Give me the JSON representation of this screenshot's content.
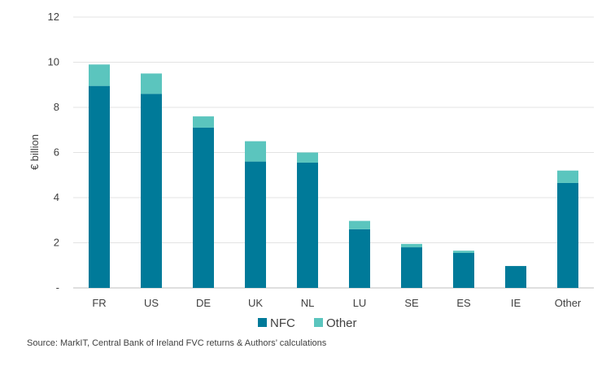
{
  "chart_data": {
    "type": "bar",
    "stacked": true,
    "categories": [
      "FR",
      "US",
      "DE",
      "UK",
      "NL",
      "LU",
      "SE",
      "ES",
      "IE",
      "Other"
    ],
    "series": [
      {
        "name": "NFC",
        "color": "#007A99",
        "values": [
          8.95,
          8.6,
          7.1,
          5.6,
          5.55,
          2.6,
          1.8,
          1.55,
          0.97,
          4.65
        ]
      },
      {
        "name": "Other",
        "color": "#5BC5BE",
        "values": [
          0.95,
          0.9,
          0.5,
          0.9,
          0.45,
          0.37,
          0.15,
          0.1,
          0.0,
          0.55
        ]
      }
    ],
    "ylabel": "€ billion",
    "xlabel": "",
    "ylim": [
      0,
      12
    ],
    "yticks": [
      0,
      2,
      4,
      6,
      8,
      10,
      12
    ],
    "ytick_labels": [
      "-",
      "2",
      "4",
      "6",
      "8",
      "10",
      "12"
    ],
    "grid": true,
    "legend_position": "bottom"
  },
  "source": "Source: MarkIT, Central Bank of Ireland FVC returns & Authors’ calculations"
}
